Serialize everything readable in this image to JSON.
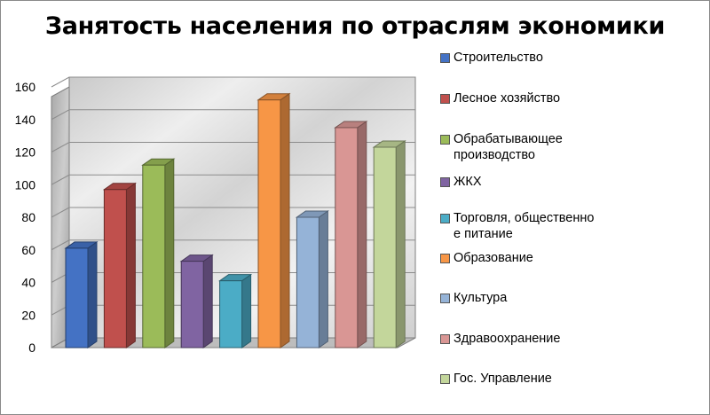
{
  "chart_data": {
    "type": "bar",
    "title": "Занятость населения по отраслям экономики",
    "xlabel": "",
    "ylabel": "",
    "ylim": [
      0,
      160
    ],
    "yticks": [
      0,
      20,
      40,
      60,
      80,
      100,
      120,
      140,
      160
    ],
    "grid": true,
    "legend": "right",
    "three_d": true,
    "series": [
      {
        "name": "Строительство",
        "value": 61,
        "color": "#4472C4",
        "label_lines": [
          "Строительство"
        ]
      },
      {
        "name": "Лесное хозяйство",
        "value": 97,
        "color": "#C0504D",
        "label_lines": [
          "Лесное хозяйство"
        ]
      },
      {
        "name": "Обрабатывающее производство",
        "value": 112,
        "color": "#9BBB59",
        "label_lines": [
          "Обрабатывающее",
          "производство"
        ]
      },
      {
        "name": "ЖКХ",
        "value": 53,
        "color": "#8064A2",
        "label_lines": [
          "ЖКХ"
        ]
      },
      {
        "name": "Торговля, общественное питание",
        "value": 41,
        "color": "#4BACC6",
        "label_lines": [
          "Торговля, общественно",
          "е питание"
        ]
      },
      {
        "name": "Образование",
        "value": 152,
        "color": "#F79646",
        "label_lines": [
          "Образование"
        ]
      },
      {
        "name": "Культура",
        "value": 80,
        "color": "#95B3D7",
        "label_lines": [
          "Культура"
        ]
      },
      {
        "name": "Здравоохранение",
        "value": 135,
        "color": "#D99694",
        "label_lines": [
          "Здравоохранение"
        ]
      },
      {
        "name": "Гос. Управление",
        "value": 123,
        "color": "#C3D69B",
        "label_lines": [
          "Гос. Управление"
        ]
      }
    ]
  }
}
